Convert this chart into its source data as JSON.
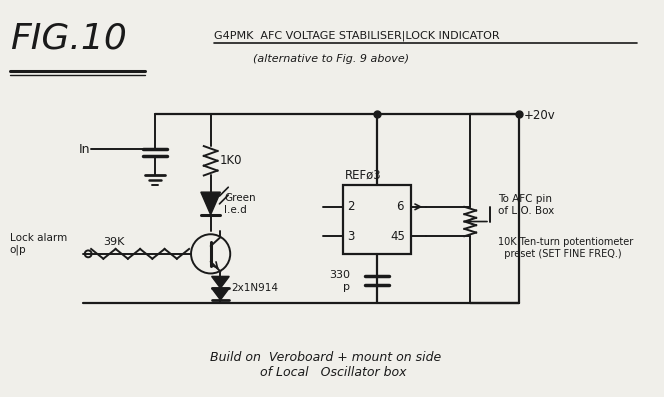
{
  "bg_color": "#f0efea",
  "line_color": "#1a1a1a",
  "title_fig": "FIG.10",
  "title_main": "G4PMK  AFC VOLTAGE STABILISER|LOCK INDICATOR",
  "title_sub": "(alternative to Fig. 9 above)",
  "footer": "Build on  Veroboard + mount on side\n    of Local   Oscillator box",
  "labels": {
    "in": "In",
    "plus20v": "+20v",
    "ref03": "REFø3",
    "1K0": "1K0",
    "green_led": "Green\nl.e.d",
    "39K": "39K",
    "lock_alarm": "Lock alarm\no|p",
    "2x1N914": "2x1N914",
    "330p": "330\np",
    "to_afc": "To AFC pin\nof L.O. Box",
    "10K_pot": "10K Ten-turn potentiometer\n  preset (SET FINE FREQ.)",
    "pin2": "2",
    "pin3": "3",
    "pin45": "45",
    "pin6": "6"
  }
}
